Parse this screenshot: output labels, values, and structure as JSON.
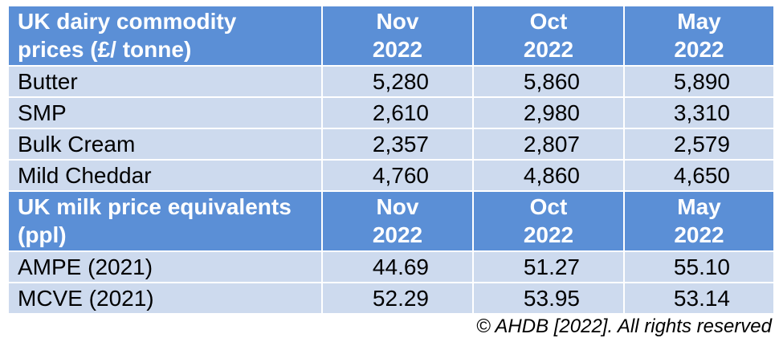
{
  "section1": {
    "header": {
      "label_line1": "UK dairy commodity",
      "label_line2": "prices (£/ tonne)",
      "columns": [
        {
          "month": "Nov",
          "year": "2022"
        },
        {
          "month": "Oct",
          "year": "2022"
        },
        {
          "month": "May",
          "year": "2022"
        }
      ]
    },
    "rows": [
      {
        "label": "Butter",
        "values": [
          "5,280",
          "5,860",
          "5,890"
        ]
      },
      {
        "label": "SMP",
        "values": [
          "2,610",
          "2,980",
          "3,310"
        ]
      },
      {
        "label": "Bulk Cream",
        "values": [
          "2,357",
          "2,807",
          "2,579"
        ]
      },
      {
        "label": "Mild Cheddar",
        "values": [
          "4,760",
          "4,860",
          "4,650"
        ]
      }
    ]
  },
  "section2": {
    "header": {
      "label_line1": "UK milk price equivalents",
      "label_line2": "(ppl)",
      "columns": [
        {
          "month": "Nov",
          "year": "2022"
        },
        {
          "month": "Oct",
          "year": "2022"
        },
        {
          "month": "May",
          "year": "2022"
        }
      ]
    },
    "rows": [
      {
        "label": "AMPE (2021)",
        "values": [
          "44.69",
          "51.27",
          "55.10"
        ]
      },
      {
        "label": "MCVE (2021)",
        "values": [
          "52.29",
          "53.95",
          "53.14"
        ]
      }
    ]
  },
  "colors": {
    "header_bg": "#5b8fd6",
    "row_bg": "#cddaee",
    "header_text": "#ffffff"
  },
  "copyright": "© AHDB [2022].  All rights reserved"
}
